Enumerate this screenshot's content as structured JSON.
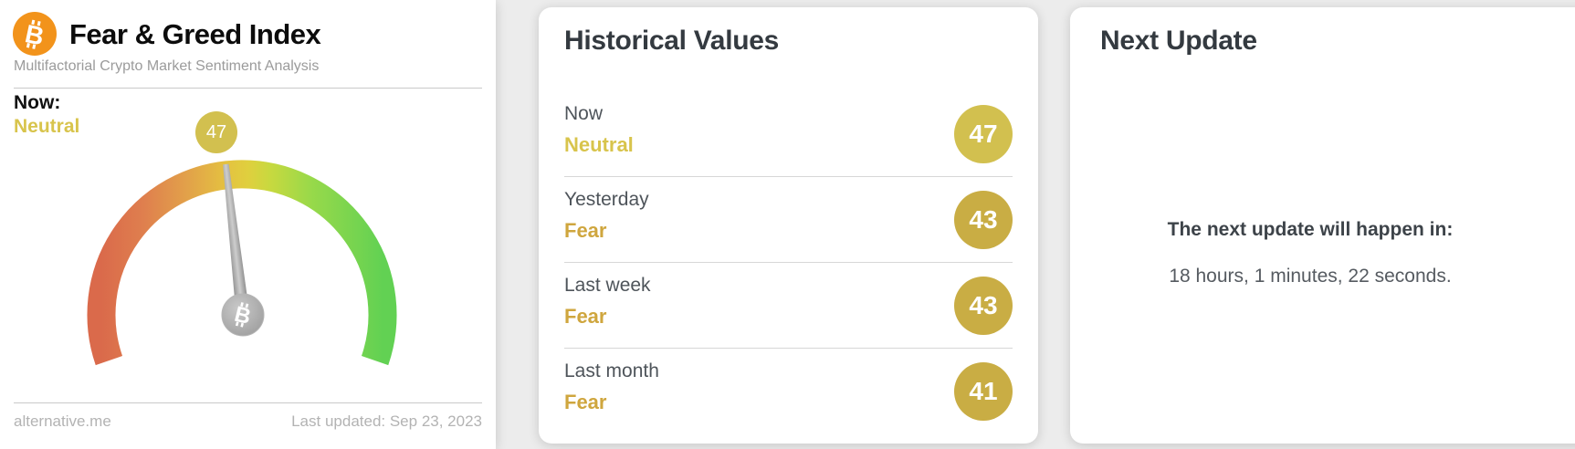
{
  "colors": {
    "background": "#ececec",
    "card": "#ffffff",
    "accent-neutral": "#d8c44c",
    "accent-fear": "#cfa63e",
    "badge-neutral": "#d2c04f",
    "badge-fear": "#c9ad44",
    "bitcoin-orange": "#f2931b",
    "heading": "#343a40",
    "text-muted": "#9b9b9b",
    "gauge-red": "#da6a4b",
    "gauge-orange": "#e2a04a",
    "gauge-yellow": "#e4cb3f",
    "gauge-green": "#62d153",
    "needle-gray": "#9c9c9c"
  },
  "gauge_card": {
    "title": "Fear & Greed Index",
    "subtitle": "Multifactorial Crypto Market Sentiment Analysis",
    "now_label": "Now:",
    "now_sentiment": "Neutral",
    "now_value": "47",
    "footer_left": "alternative.me",
    "footer_right": "Last updated: Sep 23, 2023",
    "icon": "bitcoin-icon"
  },
  "gauge": {
    "type": "gauge",
    "value": 47,
    "sentiment": "Neutral"
  },
  "historical_card": {
    "title": "Historical Values",
    "rows": [
      {
        "label": "Now",
        "sentiment": "Neutral",
        "value": "47",
        "tone": "neutral"
      },
      {
        "label": "Yesterday",
        "sentiment": "Fear",
        "value": "43",
        "tone": "fear"
      },
      {
        "label": "Last week",
        "sentiment": "Fear",
        "value": "43",
        "tone": "fear"
      },
      {
        "label": "Last month",
        "sentiment": "Fear",
        "value": "41",
        "tone": "fear"
      }
    ]
  },
  "next_update_card": {
    "title": "Next Update",
    "countdown_label": "The next update will happen in:",
    "countdown_value": "18 hours, 1 minutes, 22 seconds."
  }
}
